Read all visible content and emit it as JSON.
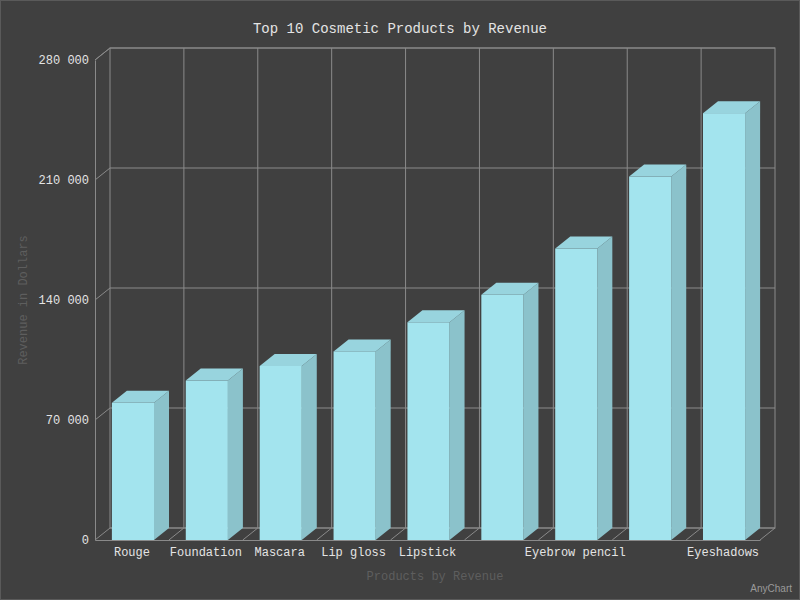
{
  "chart_data": {
    "type": "bar",
    "title": "Top 10 Cosmetic Products by Revenue",
    "x_label": "Products by Revenue",
    "y_label": "Revenue in Dollars",
    "categories": [
      "Rouge",
      "Foundation",
      "Mascara",
      "Lip gloss",
      "Lipstick",
      null,
      "Eyebrow pencil",
      null,
      "Eyeshadows"
    ],
    "values": [
      80000,
      93000,
      101500,
      110000,
      127000,
      143000,
      170000,
      212000,
      249000
    ],
    "color": "#a3e4ee",
    "ylim": [
      0,
      280000
    ],
    "yticks": [
      0,
      {
        "value": 70000,
        "label": "70 000"
      },
      {
        "value": 140000,
        "label": "140 000"
      },
      {
        "value": 210000,
        "label": "210 000"
      },
      {
        "value": 280000,
        "label": "280 000"
      }
    ],
    "grid": true,
    "annotations": [
      "AnyChart"
    ]
  }
}
